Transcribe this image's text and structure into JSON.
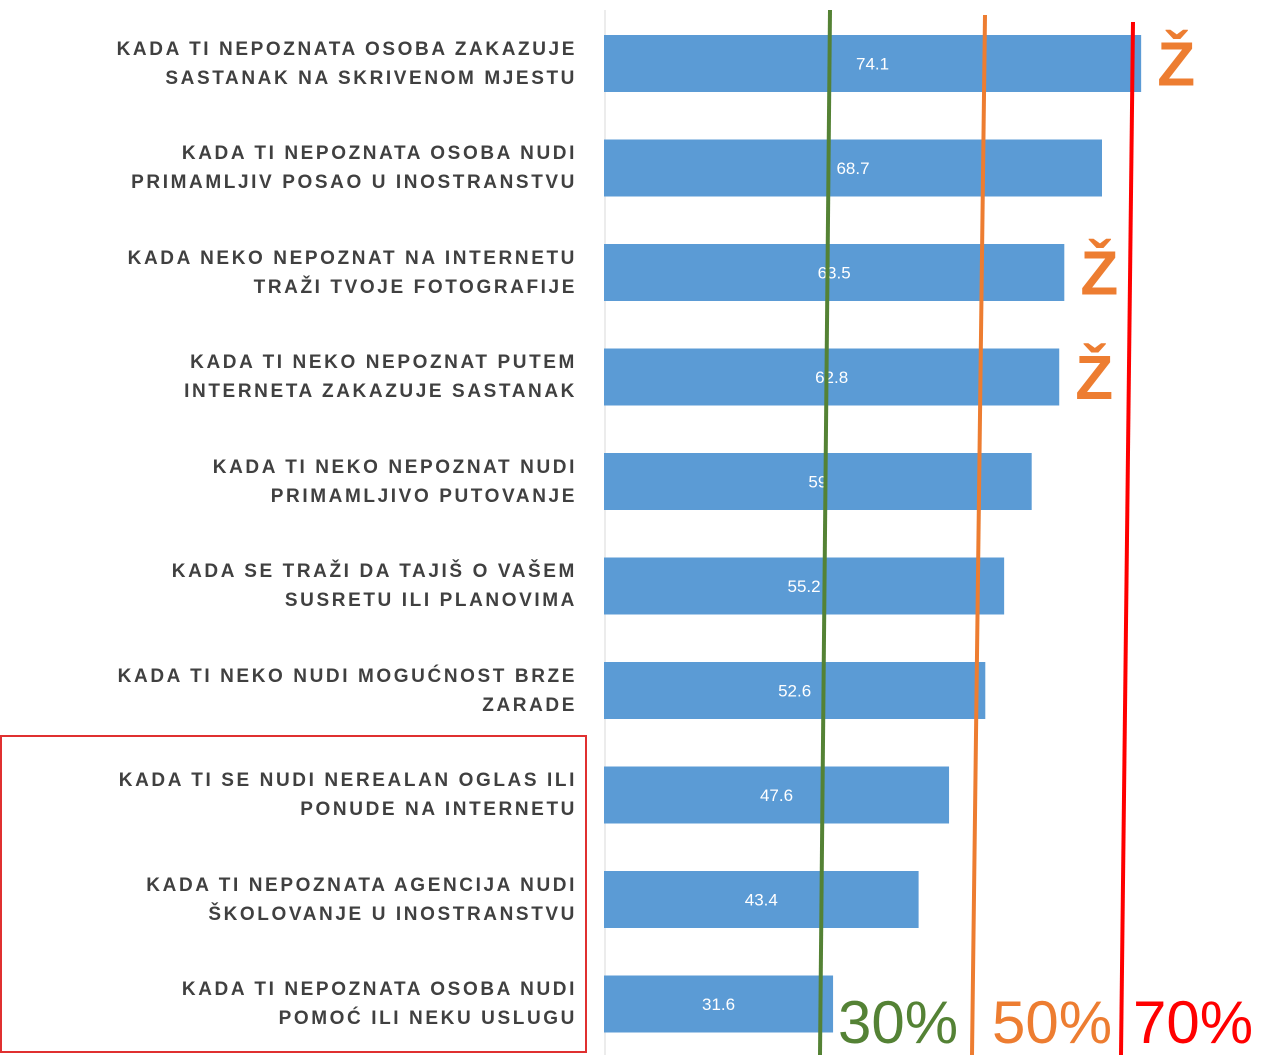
{
  "chart_data": {
    "type": "bar",
    "orientation": "horizontal",
    "categories": [
      "KADA TI NEPOZNATA OSOBA ZAKAZUJE\nSASTANAK NA SKRIVENOM MJESTU",
      "KADA TI NEPOZNATA OSOBA NUDI\nPRIMAMLJIV POSAO U INOSTRANSTVU",
      "KADA NEKO NEPOZNAT NA INTERNETU\nTRAŽI TVOJE FOTOGRAFIJE",
      "KADA TI NEKO NEPOZNAT PUTEM\nINTERNETA ZAKAZUJE SASTANAK",
      "KADA TI NEKO NEPOZNAT NUDI\nPRIMAMLJIVO PUTOVANJE",
      "KADA SE TRAŽI DA TAJIŠ O VAŠEM\nSUSRETU ILI PLANOVIMA",
      "KADA TI NEKO NUDI MOGUĆNOST BRZE\nZARADE",
      "KADA TI SE NUDI NEREALAN OGLAS ILI\nPONUDE NA INTERNETU",
      "KADA TI NEPOZNATA AGENCIJA NUDI\nŠKOLOVANJE U INOSTRANSTVU",
      "KADA TI NEPOZNATA OSOBA NUDI\nPOMOĆ ILI NEKU USLUGU"
    ],
    "values": [
      74.1,
      68.7,
      63.5,
      62.8,
      59,
      55.2,
      52.6,
      47.6,
      43.4,
      31.6
    ],
    "color": "#5b9bd5",
    "xlim": [
      0,
      91.6
    ],
    "markers": [
      "Ž",
      null,
      "Ž",
      "Ž",
      null,
      null,
      null,
      null,
      null,
      null
    ],
    "marker_color": "#ed7d31",
    "reference_lines": [
      {
        "label": "30%",
        "color": "#548235"
      },
      {
        "label": "50%",
        "color": "#ed7d31"
      },
      {
        "label": "70%",
        "color": "#ff0000"
      }
    ]
  }
}
